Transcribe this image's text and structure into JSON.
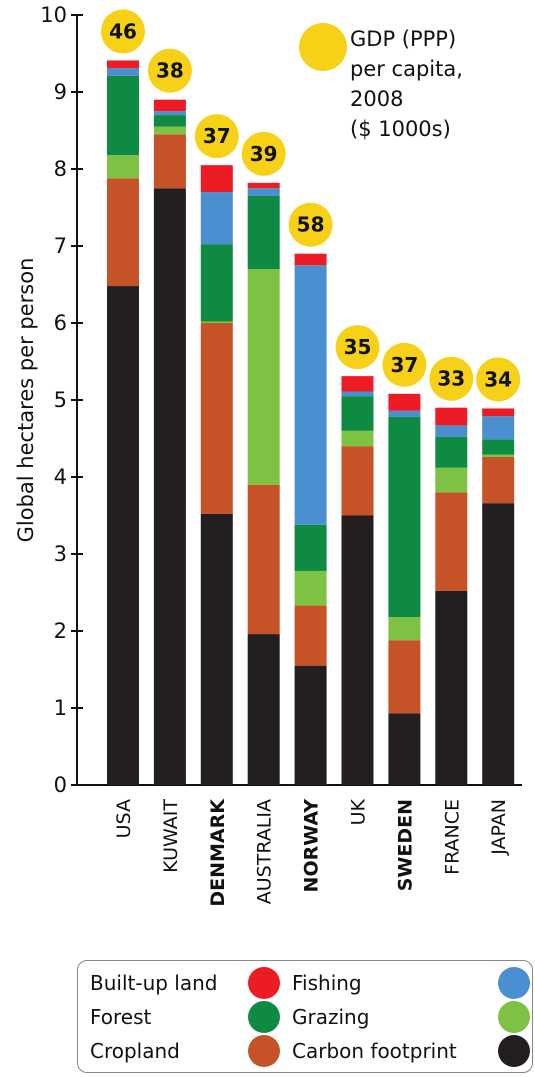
{
  "chart_data": {
    "type": "bar",
    "stacked": true,
    "ylabel": "Global hectares per person",
    "ylim": [
      0,
      10
    ],
    "yticks": [
      0,
      1,
      2,
      3,
      4,
      5,
      6,
      7,
      8,
      9,
      10
    ],
    "categories": [
      "USA",
      "KUWAIT",
      "DENMARK",
      "AUSTRALIA",
      "NORWAY",
      "UK",
      "SWEDEN",
      "FRANCE",
      "JAPAN"
    ],
    "bold_categories": [
      "DENMARK",
      "NORWAY",
      "SWEDEN"
    ],
    "gdp_label": [
      "GDP (PPP)",
      "per capita,",
      "2008",
      "($ 1000s)"
    ],
    "gdp": [
      46,
      38,
      37,
      39,
      58,
      35,
      37,
      33,
      34
    ],
    "series": [
      {
        "name": "Carbon footprint",
        "color": "#231f20",
        "values": [
          6.48,
          7.75,
          3.52,
          1.96,
          1.55,
          3.5,
          0.93,
          2.52,
          3.66
        ]
      },
      {
        "name": "Cropland",
        "color": "#c65228",
        "values": [
          1.4,
          0.7,
          2.48,
          1.94,
          0.78,
          0.9,
          0.95,
          1.28,
          0.6
        ]
      },
      {
        "name": "Grazing",
        "color": "#7dc242",
        "values": [
          0.3,
          0.1,
          0.02,
          2.8,
          0.45,
          0.2,
          0.3,
          0.32,
          0.03
        ]
      },
      {
        "name": "Forest",
        "color": "#0e8a43",
        "values": [
          1.03,
          0.15,
          1.0,
          0.95,
          0.6,
          0.45,
          2.6,
          0.4,
          0.2
        ]
      },
      {
        "name": "Fishing",
        "color": "#4a8fd0",
        "values": [
          0.1,
          0.05,
          0.68,
          0.1,
          3.37,
          0.06,
          0.08,
          0.15,
          0.3
        ]
      },
      {
        "name": "Built-up land",
        "color": "#ed1c24",
        "values": [
          0.1,
          0.15,
          0.35,
          0.07,
          0.15,
          0.2,
          0.22,
          0.23,
          0.1
        ]
      }
    ],
    "gdp_color": "#f7d117",
    "legend_position": "bottom"
  },
  "legend": {
    "items": [
      {
        "label": "Built-up land",
        "color": "#ed1c24"
      },
      {
        "label": "Fishing",
        "color": "#4a8fd0"
      },
      {
        "label": "Forest",
        "color": "#0e8a43"
      },
      {
        "label": "Grazing",
        "color": "#7dc242"
      },
      {
        "label": "Cropland",
        "color": "#c65228"
      },
      {
        "label": "Carbon footprint",
        "color": "#231f20"
      }
    ]
  }
}
